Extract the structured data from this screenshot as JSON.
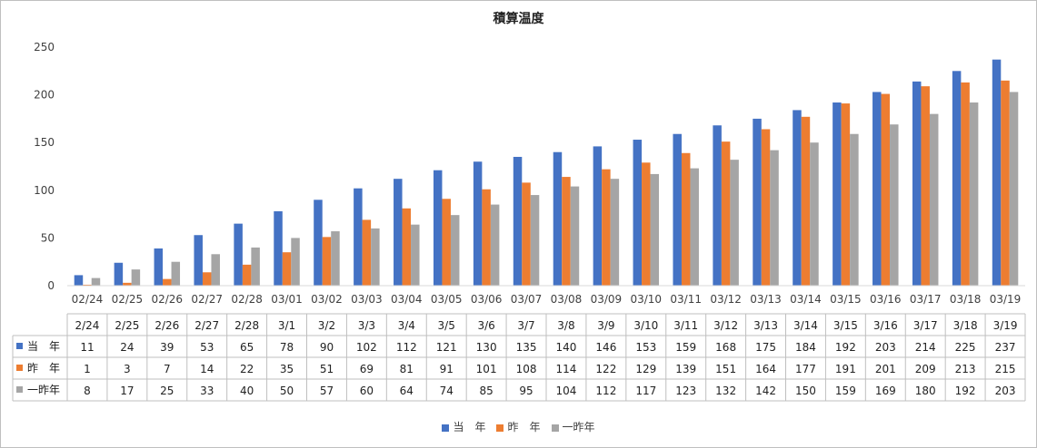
{
  "chart_data": {
    "type": "bar",
    "title": "積算温度",
    "xlabel": "",
    "ylabel": "",
    "ylim": [
      0,
      250
    ],
    "yticks": [
      0,
      50,
      100,
      150,
      200,
      250
    ],
    "grid": false,
    "legend_position": "bottom",
    "categories": [
      "02/24",
      "02/25",
      "02/26",
      "02/27",
      "02/28",
      "03/01",
      "03/02",
      "03/03",
      "03/04",
      "03/05",
      "03/06",
      "03/07",
      "03/08",
      "03/09",
      "03/10",
      "03/11",
      "03/12",
      "03/13",
      "03/14",
      "03/15",
      "03/16",
      "03/17",
      "03/18",
      "03/19"
    ],
    "table_categories": [
      "2/24",
      "2/25",
      "2/26",
      "2/27",
      "2/28",
      "3/1",
      "3/2",
      "3/3",
      "3/4",
      "3/5",
      "3/6",
      "3/7",
      "3/8",
      "3/9",
      "3/10",
      "3/11",
      "3/12",
      "3/13",
      "3/14",
      "3/15",
      "3/16",
      "3/17",
      "3/18",
      "3/19"
    ],
    "series": [
      {
        "name": "当　年",
        "color": "#4472c4",
        "values": [
          11,
          24,
          39,
          53,
          65,
          78,
          90,
          102,
          112,
          121,
          130,
          135,
          140,
          146,
          153,
          159,
          168,
          175,
          184,
          192,
          203,
          214,
          225,
          237
        ]
      },
      {
        "name": "昨　年",
        "color": "#ed7d31",
        "values": [
          1,
          3,
          7,
          14,
          22,
          35,
          51,
          69,
          81,
          91,
          101,
          108,
          114,
          122,
          129,
          139,
          151,
          164,
          177,
          191,
          201,
          209,
          213,
          215
        ]
      },
      {
        "name": "一昨年",
        "color": "#a5a5a5",
        "values": [
          8,
          17,
          25,
          33,
          40,
          50,
          57,
          60,
          64,
          74,
          85,
          95,
          104,
          112,
          117,
          123,
          132,
          142,
          150,
          159,
          169,
          180,
          192,
          203
        ]
      }
    ]
  }
}
